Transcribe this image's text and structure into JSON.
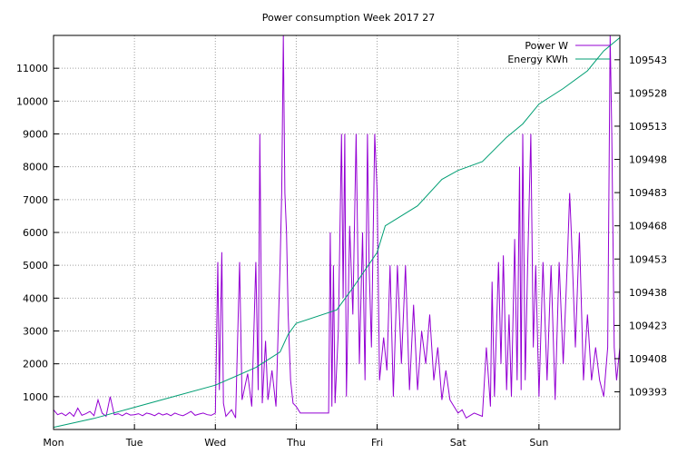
{
  "chart_data": {
    "type": "line",
    "title": "Power consumption Week 2017 27",
    "x_axis": {
      "labels": [
        "Mon",
        "Tue",
        "Wed",
        "Thu",
        "Fri",
        "Sat",
        "Sun"
      ],
      "range_days": [
        0,
        7
      ]
    },
    "y_axis_left": {
      "ticks": [
        1000,
        2000,
        3000,
        4000,
        5000,
        6000,
        7000,
        8000,
        9000,
        10000,
        11000
      ],
      "range": [
        0,
        12000
      ]
    },
    "y_axis_right": {
      "ticks": [
        109393,
        109408,
        109423,
        109438,
        109453,
        109468,
        109483,
        109498,
        109513,
        109528,
        109543
      ],
      "range": [
        109376,
        109554
      ]
    },
    "grid": true,
    "legend_position": "top-right",
    "series": [
      {
        "name": "Power W",
        "axis": "left",
        "color": "#9400d3",
        "points": [
          [
            0.0,
            600
          ],
          [
            0.05,
            450
          ],
          [
            0.1,
            500
          ],
          [
            0.15,
            420
          ],
          [
            0.2,
            520
          ],
          [
            0.25,
            400
          ],
          [
            0.3,
            650
          ],
          [
            0.35,
            430
          ],
          [
            0.4,
            480
          ],
          [
            0.45,
            550
          ],
          [
            0.5,
            420
          ],
          [
            0.55,
            900
          ],
          [
            0.6,
            500
          ],
          [
            0.65,
            400
          ],
          [
            0.7,
            1000
          ],
          [
            0.75,
            450
          ],
          [
            0.8,
            480
          ],
          [
            0.85,
            420
          ],
          [
            0.9,
            500
          ],
          [
            0.95,
            440
          ],
          [
            1.0,
            450
          ],
          [
            1.05,
            480
          ],
          [
            1.1,
            420
          ],
          [
            1.15,
            500
          ],
          [
            1.2,
            470
          ],
          [
            1.25,
            420
          ],
          [
            1.3,
            500
          ],
          [
            1.35,
            440
          ],
          [
            1.4,
            480
          ],
          [
            1.45,
            420
          ],
          [
            1.5,
            500
          ],
          [
            1.55,
            450
          ],
          [
            1.6,
            420
          ],
          [
            1.65,
            480
          ],
          [
            1.7,
            550
          ],
          [
            1.75,
            430
          ],
          [
            1.8,
            470
          ],
          [
            1.85,
            500
          ],
          [
            1.9,
            450
          ],
          [
            1.95,
            430
          ],
          [
            2.0,
            500
          ],
          [
            2.03,
            5100
          ],
          [
            2.05,
            1200
          ],
          [
            2.08,
            5400
          ],
          [
            2.1,
            800
          ],
          [
            2.13,
            400
          ],
          [
            2.2,
            600
          ],
          [
            2.25,
            350
          ],
          [
            2.3,
            5100
          ],
          [
            2.33,
            900
          ],
          [
            2.4,
            1700
          ],
          [
            2.45,
            700
          ],
          [
            2.5,
            5100
          ],
          [
            2.53,
            1200
          ],
          [
            2.55,
            9000
          ],
          [
            2.58,
            800
          ],
          [
            2.62,
            2700
          ],
          [
            2.65,
            900
          ],
          [
            2.7,
            1800
          ],
          [
            2.75,
            700
          ],
          [
            2.8,
            5000
          ],
          [
            2.82,
            7200
          ],
          [
            2.84,
            12000
          ],
          [
            2.86,
            7200
          ],
          [
            2.88,
            6000
          ],
          [
            2.9,
            3500
          ],
          [
            2.93,
            1500
          ],
          [
            2.96,
            800
          ],
          [
            3.0,
            700
          ],
          [
            3.05,
            500
          ],
          [
            3.2,
            500
          ],
          [
            3.3,
            500
          ],
          [
            3.4,
            500
          ],
          [
            3.42,
            6000
          ],
          [
            3.44,
            700
          ],
          [
            3.46,
            5000
          ],
          [
            3.48,
            800
          ],
          [
            3.52,
            3000
          ],
          [
            3.56,
            9000
          ],
          [
            3.58,
            4000
          ],
          [
            3.6,
            9000
          ],
          [
            3.62,
            1000
          ],
          [
            3.66,
            6200
          ],
          [
            3.7,
            3500
          ],
          [
            3.74,
            9000
          ],
          [
            3.78,
            2000
          ],
          [
            3.82,
            6000
          ],
          [
            3.85,
            1500
          ],
          [
            3.88,
            9000
          ],
          [
            3.9,
            5000
          ],
          [
            3.93,
            2500
          ],
          [
            3.97,
            9000
          ],
          [
            4.0,
            7200
          ],
          [
            4.03,
            1500
          ],
          [
            4.08,
            2800
          ],
          [
            4.12,
            1800
          ],
          [
            4.16,
            5000
          ],
          [
            4.2,
            1000
          ],
          [
            4.25,
            5000
          ],
          [
            4.3,
            2000
          ],
          [
            4.35,
            5000
          ],
          [
            4.4,
            1200
          ],
          [
            4.45,
            3800
          ],
          [
            4.5,
            1200
          ],
          [
            4.55,
            3000
          ],
          [
            4.6,
            2000
          ],
          [
            4.65,
            3500
          ],
          [
            4.7,
            1500
          ],
          [
            4.75,
            2500
          ],
          [
            4.8,
            900
          ],
          [
            4.85,
            1800
          ],
          [
            4.9,
            900
          ],
          [
            4.95,
            700
          ],
          [
            5.0,
            500
          ],
          [
            5.05,
            600
          ],
          [
            5.1,
            350
          ],
          [
            5.2,
            500
          ],
          [
            5.3,
            400
          ],
          [
            5.35,
            2500
          ],
          [
            5.4,
            700
          ],
          [
            5.42,
            4500
          ],
          [
            5.45,
            1000
          ],
          [
            5.5,
            5100
          ],
          [
            5.53,
            2000
          ],
          [
            5.56,
            5300
          ],
          [
            5.6,
            1200
          ],
          [
            5.63,
            3500
          ],
          [
            5.66,
            1000
          ],
          [
            5.7,
            5800
          ],
          [
            5.73,
            1500
          ],
          [
            5.76,
            8000
          ],
          [
            5.78,
            1200
          ],
          [
            5.8,
            9000
          ],
          [
            5.83,
            1500
          ],
          [
            5.86,
            5000
          ],
          [
            5.9,
            9000
          ],
          [
            5.93,
            2500
          ],
          [
            5.96,
            5000
          ],
          [
            6.0,
            1000
          ],
          [
            6.05,
            5100
          ],
          [
            6.1,
            1500
          ],
          [
            6.15,
            5000
          ],
          [
            6.2,
            900
          ],
          [
            6.25,
            5100
          ],
          [
            6.3,
            2000
          ],
          [
            6.35,
            5100
          ],
          [
            6.38,
            7200
          ],
          [
            6.4,
            6000
          ],
          [
            6.45,
            2500
          ],
          [
            6.5,
            6000
          ],
          [
            6.55,
            1500
          ],
          [
            6.6,
            3500
          ],
          [
            6.65,
            1500
          ],
          [
            6.7,
            2500
          ],
          [
            6.75,
            1500
          ],
          [
            6.8,
            1000
          ],
          [
            6.85,
            2500
          ],
          [
            6.88,
            12000
          ],
          [
            6.9,
            9000
          ],
          [
            6.93,
            2500
          ],
          [
            6.96,
            1500
          ],
          [
            7.0,
            2500
          ]
        ]
      },
      {
        "name": "Energy KWh",
        "axis": "right",
        "color": "#009e73",
        "points": [
          [
            0.0,
            109377
          ],
          [
            0.5,
            109381
          ],
          [
            1.0,
            109386
          ],
          [
            1.5,
            109391
          ],
          [
            2.0,
            109396
          ],
          [
            2.5,
            109404
          ],
          [
            2.8,
            109411
          ],
          [
            2.9,
            109419
          ],
          [
            3.0,
            109424
          ],
          [
            3.5,
            109430
          ],
          [
            3.7,
            109440
          ],
          [
            4.0,
            109456
          ],
          [
            4.1,
            109468
          ],
          [
            4.5,
            109477
          ],
          [
            4.8,
            109489
          ],
          [
            5.0,
            109493
          ],
          [
            5.3,
            109497
          ],
          [
            5.6,
            109508
          ],
          [
            5.8,
            109514
          ],
          [
            6.0,
            109523
          ],
          [
            6.3,
            109530
          ],
          [
            6.6,
            109538
          ],
          [
            6.8,
            109547
          ],
          [
            7.0,
            109553
          ]
        ]
      }
    ]
  }
}
